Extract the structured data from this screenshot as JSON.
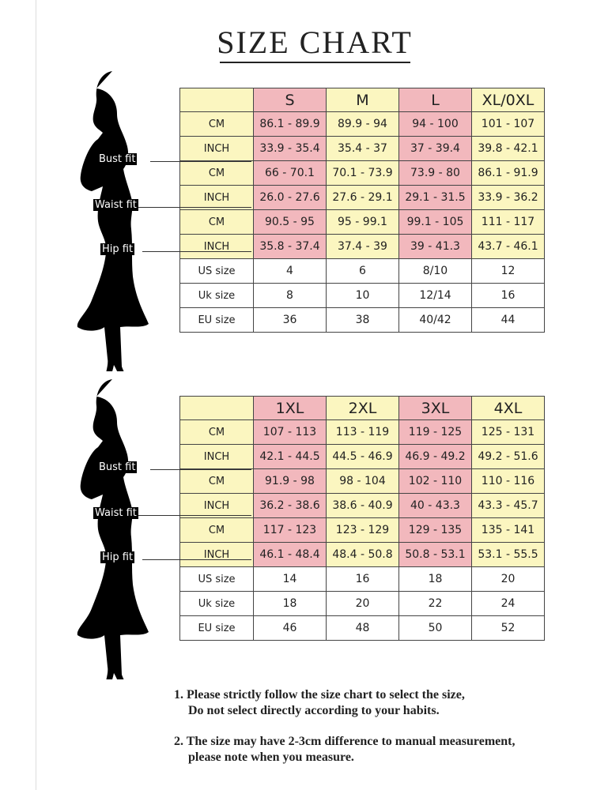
{
  "title": "SIZE CHART",
  "tables": [
    {
      "sizes": [
        "S",
        "M",
        "L",
        "XL/0XL"
      ],
      "rows": [
        {
          "label": "CM",
          "values": [
            "86.1 - 89.9",
            "89.9 - 94",
            "94 - 100",
            "101 - 107"
          ]
        },
        {
          "label": "INCH",
          "values": [
            "33.9 - 35.4",
            "35.4 - 37",
            "37 - 39.4",
            "39.8 - 42.1"
          ]
        },
        {
          "label": "CM",
          "values": [
            "66 - 70.1",
            "70.1 - 73.9",
            "73.9 - 80",
            "86.1 - 91.9"
          ]
        },
        {
          "label": "INCH",
          "values": [
            "26.0 - 27.6",
            "27.6 - 29.1",
            "29.1 - 31.5",
            "33.9 - 36.2"
          ]
        },
        {
          "label": "CM",
          "values": [
            "90.5 - 95",
            "95 - 99.1",
            "99.1 - 105",
            "111 - 117"
          ]
        },
        {
          "label": "INCH",
          "values": [
            "35.8 - 37.4",
            "37.4 - 39",
            "39 - 41.3",
            "43.7 - 46.1"
          ]
        },
        {
          "label": "US size",
          "values": [
            "4",
            "6",
            "8/10",
            "12"
          ]
        },
        {
          "label": "Uk size",
          "values": [
            "8",
            "10",
            "12/14",
            "16"
          ]
        },
        {
          "label": "EU size",
          "values": [
            "36",
            "38",
            "40/42",
            "44"
          ]
        }
      ]
    },
    {
      "sizes": [
        "1XL",
        "2XL",
        "3XL",
        "4XL"
      ],
      "rows": [
        {
          "label": "CM",
          "values": [
            "107 - 113",
            "113 - 119",
            "119 - 125",
            "125 - 131"
          ]
        },
        {
          "label": "INCH",
          "values": [
            "42.1 - 44.5",
            "44.5 - 46.9",
            "46.9 - 49.2",
            "49.2 - 51.6"
          ]
        },
        {
          "label": "CM",
          "values": [
            "91.9 - 98",
            "98 - 104",
            "102 - 110",
            "110 - 116"
          ]
        },
        {
          "label": "INCH",
          "values": [
            "36.2 - 38.6",
            "38.6 - 40.9",
            "40 - 43.3",
            "43.3 - 45.7"
          ]
        },
        {
          "label": "CM",
          "values": [
            "117 - 123",
            "123 - 129",
            "129 - 135",
            "135 - 141"
          ]
        },
        {
          "label": "INCH",
          "values": [
            "46.1 - 48.4",
            "48.4 - 50.8",
            "50.8 - 53.1",
            "53.1 - 55.5"
          ]
        },
        {
          "label": "US size",
          "values": [
            "14",
            "16",
            "18",
            "20"
          ]
        },
        {
          "label": "Uk size",
          "values": [
            "18",
            "20",
            "22",
            "24"
          ]
        },
        {
          "label": "EU size",
          "values": [
            "46",
            "48",
            "50",
            "52"
          ]
        }
      ]
    }
  ],
  "fit_labels": [
    "Bust fit",
    "Waist fit",
    "Hip fit"
  ],
  "notes": [
    {
      "line1": "1.  Please strictly follow the size chart to select the size,",
      "line2": "Do not select directly according to your habits."
    },
    {
      "line1": "2.  The size may have 2-3cm difference  to manual measurement,",
      "line2": "please note when you measure."
    }
  ],
  "colors": {
    "pink": "#f2b8bd",
    "yellow": "#fbf6c0"
  }
}
